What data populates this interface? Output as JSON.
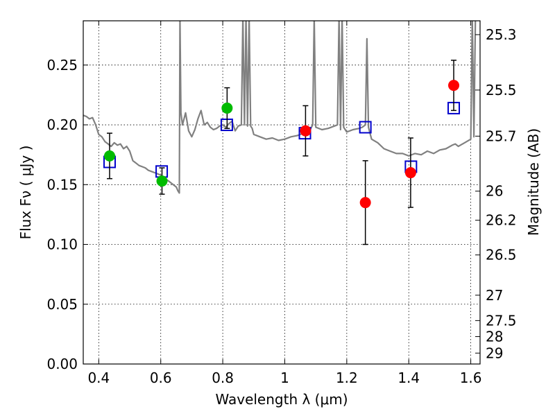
{
  "chart_data": {
    "type": "scatter",
    "xlabel": "Wavelength  λ (μm)",
    "ylabel": "Flux  Fν  ( μJy )",
    "y2label": "Magnitude (AB)",
    "xlim": [
      0.35,
      1.63
    ],
    "ylim": [
      0.0,
      0.287
    ],
    "grid": true,
    "x_ticks": [
      0.4,
      0.6,
      0.8,
      1.0,
      1.2,
      1.4,
      1.6
    ],
    "x_tick_labels": [
      "0.4",
      "0.6",
      "0.8",
      "1",
      "1.2",
      "1.4",
      "1.6"
    ],
    "y_ticks": [
      0.0,
      0.05,
      0.1,
      0.15,
      0.2,
      0.25
    ],
    "y_tick_labels": [
      "0.00",
      "0.05",
      "0.10",
      "0.15",
      "0.20",
      "0.25"
    ],
    "y2_ticks": [
      25.3,
      25.5,
      25.7,
      26,
      26.2,
      26.5,
      27,
      27.5,
      28,
      29
    ],
    "y2_tick_labels": [
      "25.3",
      "25.5",
      "25.7",
      "26",
      "26.2",
      "26.5",
      "27",
      "27.5",
      "28",
      "29"
    ],
    "series": [
      {
        "kind": "line",
        "color": "#808080",
        "x": [
          0.35,
          0.36,
          0.37,
          0.38,
          0.39,
          0.4,
          0.41,
          0.42,
          0.43,
          0.44,
          0.45,
          0.46,
          0.47,
          0.48,
          0.49,
          0.5,
          0.51,
          0.52,
          0.53,
          0.54,
          0.55,
          0.56,
          0.57,
          0.58,
          0.59,
          0.6,
          0.61,
          0.62,
          0.63,
          0.64,
          0.65,
          0.655,
          0.66,
          0.662,
          0.665,
          0.67,
          0.68,
          0.69,
          0.7,
          0.71,
          0.72,
          0.73,
          0.74,
          0.75,
          0.76,
          0.77,
          0.78,
          0.79,
          0.8,
          0.81,
          0.82,
          0.83,
          0.84,
          0.85,
          0.86,
          0.865,
          0.87,
          0.875,
          0.88,
          0.885,
          0.89,
          0.895,
          0.9,
          0.92,
          0.94,
          0.96,
          0.98,
          1.0,
          1.02,
          1.04,
          1.06,
          1.08,
          1.09,
          1.095,
          1.1,
          1.12,
          1.14,
          1.16,
          1.17,
          1.175,
          1.18,
          1.185,
          1.19,
          1.2,
          1.22,
          1.24,
          1.25,
          1.26,
          1.265,
          1.27,
          1.28,
          1.3,
          1.32,
          1.34,
          1.36,
          1.38,
          1.4,
          1.42,
          1.44,
          1.46,
          1.48,
          1.5,
          1.52,
          1.54,
          1.55,
          1.56,
          1.58,
          1.6,
          1.605,
          1.61,
          1.615,
          1.62
        ],
        "y": [
          0.208,
          0.207,
          0.205,
          0.206,
          0.2,
          0.192,
          0.19,
          0.186,
          0.184,
          0.182,
          0.185,
          0.183,
          0.184,
          0.18,
          0.182,
          0.178,
          0.17,
          0.168,
          0.166,
          0.165,
          0.164,
          0.162,
          0.161,
          0.16,
          0.159,
          0.158,
          0.156,
          0.154,
          0.152,
          0.15,
          0.148,
          0.145,
          0.143,
          0.29,
          0.21,
          0.2,
          0.21,
          0.195,
          0.19,
          0.196,
          0.205,
          0.212,
          0.2,
          0.202,
          0.198,
          0.196,
          0.197,
          0.199,
          0.2,
          0.198,
          0.201,
          0.203,
          0.195,
          0.199,
          0.2,
          0.29,
          0.2,
          0.29,
          0.199,
          0.29,
          0.199,
          0.197,
          0.192,
          0.19,
          0.188,
          0.189,
          0.187,
          0.188,
          0.19,
          0.191,
          0.193,
          0.195,
          0.2,
          0.29,
          0.198,
          0.196,
          0.197,
          0.199,
          0.2,
          0.29,
          0.196,
          0.29,
          0.198,
          0.194,
          0.196,
          0.197,
          0.198,
          0.2,
          0.272,
          0.198,
          0.188,
          0.185,
          0.18,
          0.178,
          0.176,
          0.176,
          0.174,
          0.176,
          0.175,
          0.178,
          0.176,
          0.179,
          0.18,
          0.183,
          0.184,
          0.182,
          0.185,
          0.188,
          0.29,
          0.19,
          0.29,
          0.29
        ]
      },
      {
        "kind": "open-square",
        "color": "#0000cc",
        "x": [
          0.435,
          0.603,
          0.813,
          1.065,
          1.26,
          1.407,
          1.545
        ],
        "y": [
          0.169,
          0.161,
          0.2,
          0.193,
          0.198,
          0.165,
          0.214
        ]
      },
      {
        "kind": "filled-circle",
        "color": "#00bb00",
        "x": [
          0.435,
          0.604,
          0.814
        ],
        "y": [
          0.174,
          0.153,
          0.214
        ],
        "yerr": [
          0.019,
          0.011,
          0.017
        ]
      },
      {
        "kind": "filled-circle",
        "color": "#ff0000",
        "x": [
          1.067,
          1.26,
          1.406,
          1.545
        ],
        "y": [
          0.195,
          0.135,
          0.16,
          0.233
        ],
        "yerr": [
          0.021,
          0.035,
          0.029,
          0.021
        ]
      }
    ]
  }
}
